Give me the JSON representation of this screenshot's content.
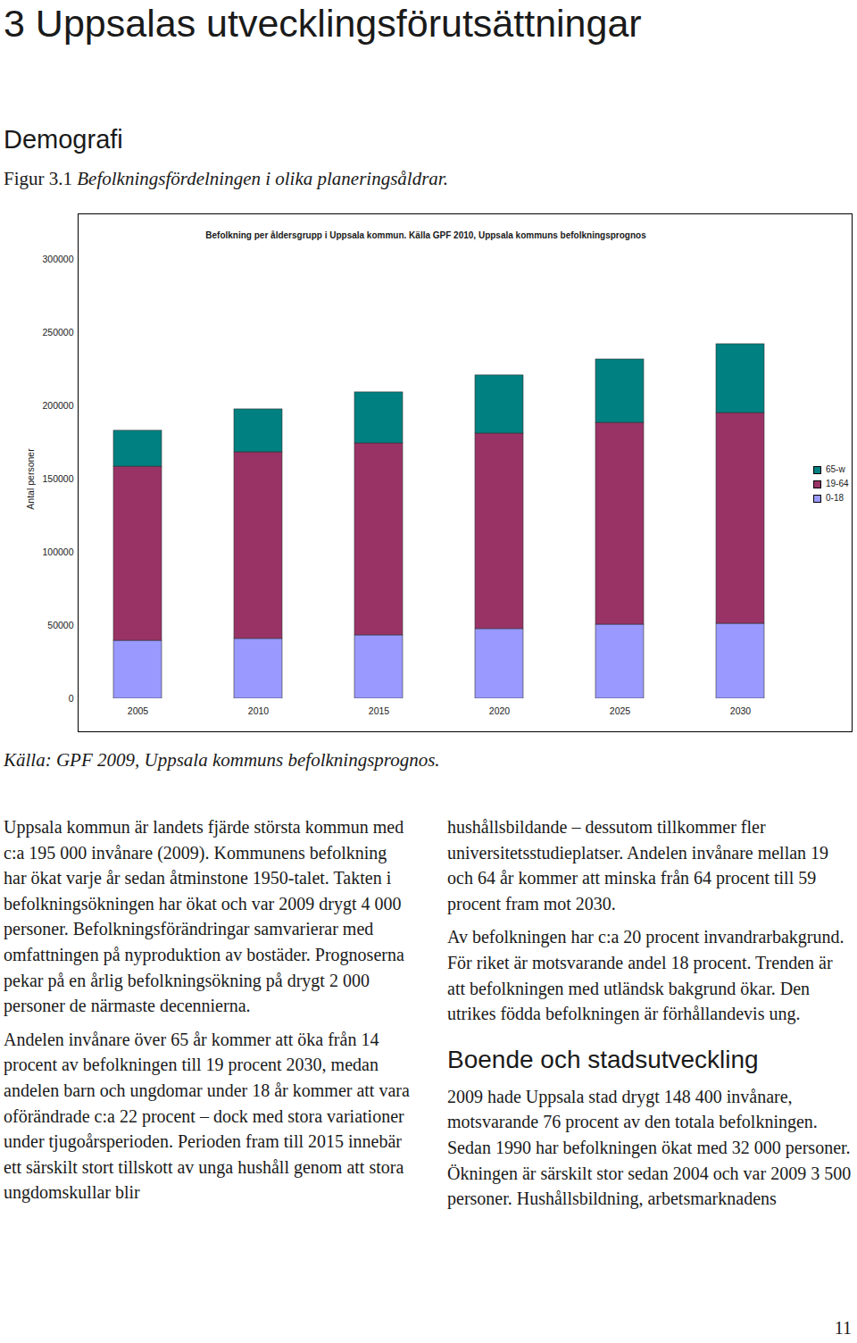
{
  "heading": "3 Uppsalas utvecklingsförutsättningar",
  "section": "Demografi",
  "figure_label": "Figur 3.1",
  "figure_caption": "Befolkningsfördelningen i olika planeringsåldrar.",
  "chart_data": {
    "type": "bar",
    "stacked": true,
    "title": "Befolkning per åldersgrupp i Uppsala kommun. Källa GPF 2010, Uppsala kommuns befolkningsprognos",
    "y_label": "Antal personer",
    "categories": [
      "2005",
      "2010",
      "2015",
      "2020",
      "2025",
      "2030"
    ],
    "series": [
      {
        "name": "0-18",
        "color": "#9999ff",
        "values": [
          39600,
          40900,
          43300,
          47600,
          50600,
          51200
        ]
      },
      {
        "name": "19-64",
        "color": "#993366",
        "values": [
          118900,
          127400,
          131100,
          133500,
          137800,
          143900
        ]
      },
      {
        "name": "65-w",
        "color": "#008080",
        "values": [
          24500,
          29300,
          34800,
          39700,
          43300,
          47000
        ]
      }
    ],
    "ylim": [
      0,
      300000
    ],
    "yticks": [
      0,
      50000,
      100000,
      150000,
      200000,
      250000,
      300000
    ],
    "grid": false,
    "legend": "right"
  },
  "source": "Källa: GPF 2009, Uppsala kommuns befolkningsprognos.",
  "columns": [
    [
      {
        "paragraph": "Uppsala kommun är landets fjärde största kommun med c:a 195 000 invånare (2009). Kommunens befolkning har ökat varje år sedan åtminstone 1950-talet. Takten i befolkningsökningen har ökat och var 2009 drygt 4 000 personer. Befolkningsförändringar samvarierar med omfattningen på nyproduktion av bostäder. Prognoserna pekar på en årlig befolkningsökning på drygt 2 000 personer de närmaste decennierna."
      },
      {
        "paragraph": "Andelen invånare över 65 år kommer att öka från 14 procent av befolkningen till 19 procent 2030, medan andelen barn och ungdomar under 18 år kommer att vara oförändrade c:a 22 procent – dock med stora variationer under tjugoårsperioden. Perioden fram till 2015 innebär ett särskilt stort tillskott av unga hushåll genom att stora ungdomskullar blir"
      }
    ],
    [
      {
        "paragraph": "hushållsbildande – dessutom tillkommer fler universitetsstudieplatser. Andelen invånare mellan 19 och 64 år kommer att minska från 64 procent till 59 procent fram mot 2030."
      },
      {
        "paragraph": "Av befolkningen har c:a 20 procent invandrarbakgrund. För riket är motsvarande andel 18 procent. Trenden är att befolkningen med utländsk bakgrund ökar. Den utrikes födda befolkningen är förhållandevis ung."
      },
      {
        "subheading": "Boende och stadsutveckling"
      },
      {
        "paragraph": "2009 hade Uppsala stad drygt 148 400 invånare, motsvarande 76 procent av den totala befolkningen. Sedan 1990 har befolkningen ökat med 32 000 personer. Ökningen är särskilt stor sedan 2004 och var 2009 3 500 personer. Hushållsbildning, arbetsmarknadens"
      }
    ]
  ],
  "page_number": "11"
}
